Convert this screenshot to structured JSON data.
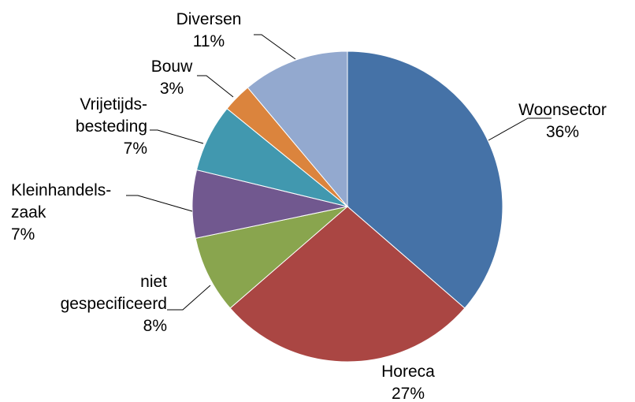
{
  "chart_data": {
    "type": "pie",
    "title": "",
    "slices": [
      {
        "label_lines": [
          "Woonsector"
        ],
        "value": 36,
        "value_label": "36%",
        "color": "#4572A7"
      },
      {
        "label_lines": [
          "Horeca"
        ],
        "value": 27,
        "value_label": "27%",
        "color": "#AA4643"
      },
      {
        "label_lines": [
          "niet",
          "gespecificeerd"
        ],
        "value": 8,
        "value_label": "8%",
        "color": "#89A54E"
      },
      {
        "label_lines": [
          "Kleinhandels-",
          "zaak"
        ],
        "value": 7,
        "value_label": "7%",
        "color": "#71588F"
      },
      {
        "label_lines": [
          "Vrijetijds-",
          "besteding"
        ],
        "value": 7,
        "value_label": "7%",
        "color": "#4198AF"
      },
      {
        "label_lines": [
          "Bouw"
        ],
        "value": 3,
        "value_label": "3%",
        "color": "#DB843D"
      },
      {
        "label_lines": [
          "Diversen"
        ],
        "value": 11,
        "value_label": "11%",
        "color": "#93A9CF"
      }
    ],
    "legend": "none",
    "start_angle": "top",
    "direction": "clockwise"
  }
}
